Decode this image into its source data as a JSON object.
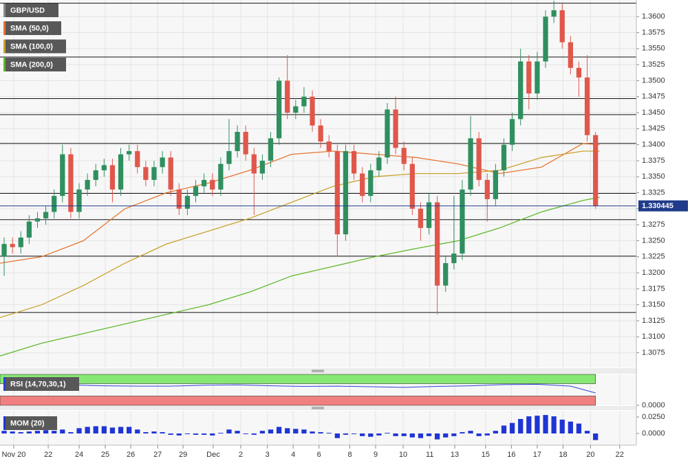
{
  "chart_data": [
    {
      "type": "candlestick",
      "name": "GBP/USD",
      "legend_color": "#8a8a8a",
      "up_color": "#2f8f5f",
      "down_color": "#e0574b",
      "open": [
        1.3225,
        1.3245,
        1.324,
        1.3255,
        1.328,
        1.3285,
        1.3295,
        1.332,
        1.3385,
        1.3295,
        1.333,
        1.3345,
        1.336,
        1.3368,
        1.333,
        1.3385,
        1.339,
        1.3365,
        1.3345,
        1.3365,
        1.338,
        1.333,
        1.33,
        1.332,
        1.3335,
        1.3345,
        1.333,
        1.337,
        1.339,
        1.342,
        1.3385,
        1.3355,
        1.3375,
        1.341,
        1.35,
        1.345,
        1.346,
        1.3475,
        1.343,
        1.3405,
        1.339,
        1.326,
        1.339,
        1.3355,
        1.332,
        1.336,
        1.338,
        1.3455,
        1.3395,
        1.337,
        1.33,
        1.327,
        1.331,
        1.318,
        1.3215,
        1.323,
        1.333,
        1.341,
        1.3345,
        1.3315,
        1.336,
        1.34,
        1.344,
        1.353,
        1.348,
        1.353,
        1.36,
        1.361,
        1.356,
        1.352,
        1.3505,
        1.3415
      ],
      "high": [
        1.3255,
        1.3255,
        1.3265,
        1.329,
        1.3295,
        1.3305,
        1.333,
        1.34,
        1.3395,
        1.334,
        1.3355,
        1.337,
        1.3378,
        1.3378,
        1.3395,
        1.34,
        1.34,
        1.3375,
        1.3375,
        1.339,
        1.339,
        1.334,
        1.333,
        1.3345,
        1.3355,
        1.3355,
        1.338,
        1.344,
        1.343,
        1.343,
        1.3395,
        1.3385,
        1.342,
        1.3505,
        1.354,
        1.347,
        1.349,
        1.3485,
        1.344,
        1.3415,
        1.34,
        1.34,
        1.34,
        1.3365,
        1.337,
        1.339,
        1.3465,
        1.3475,
        1.3405,
        1.338,
        1.331,
        1.3325,
        1.332,
        1.3225,
        1.332,
        1.3345,
        1.3445,
        1.342,
        1.3355,
        1.337,
        1.341,
        1.345,
        1.355,
        1.354,
        1.3545,
        1.361,
        1.3625,
        1.362,
        1.357,
        1.353,
        1.354,
        1.342
      ],
      "low": [
        1.3195,
        1.323,
        1.323,
        1.3245,
        1.327,
        1.3275,
        1.3285,
        1.331,
        1.3285,
        1.3285,
        1.332,
        1.3335,
        1.335,
        1.331,
        1.332,
        1.3375,
        1.3355,
        1.3335,
        1.3335,
        1.3355,
        1.332,
        1.329,
        1.329,
        1.331,
        1.3325,
        1.332,
        1.332,
        1.336,
        1.338,
        1.3375,
        1.329,
        1.3345,
        1.3365,
        1.34,
        1.344,
        1.344,
        1.345,
        1.342,
        1.3395,
        1.338,
        1.3225,
        1.325,
        1.3345,
        1.331,
        1.331,
        1.335,
        1.337,
        1.3385,
        1.336,
        1.329,
        1.325,
        1.326,
        1.3135,
        1.317,
        1.3205,
        1.322,
        1.332,
        1.3335,
        1.328,
        1.3305,
        1.335,
        1.339,
        1.343,
        1.3455,
        1.347,
        1.352,
        1.359,
        1.355,
        1.351,
        1.3475,
        1.3405,
        1.33
      ],
      "close": [
        1.3245,
        1.324,
        1.3255,
        1.328,
        1.3285,
        1.3295,
        1.332,
        1.3385,
        1.3295,
        1.333,
        1.3345,
        1.336,
        1.3368,
        1.333,
        1.3385,
        1.339,
        1.3365,
        1.3345,
        1.3365,
        1.338,
        1.333,
        1.33,
        1.332,
        1.3335,
        1.3345,
        1.333,
        1.337,
        1.339,
        1.342,
        1.3385,
        1.3355,
        1.3375,
        1.341,
        1.35,
        1.345,
        1.346,
        1.3475,
        1.343,
        1.3405,
        1.339,
        1.326,
        1.339,
        1.3355,
        1.332,
        1.336,
        1.338,
        1.3455,
        1.3395,
        1.337,
        1.33,
        1.327,
        1.331,
        1.318,
        1.3215,
        1.323,
        1.333,
        1.341,
        1.3345,
        1.3315,
        1.336,
        1.34,
        1.344,
        1.353,
        1.348,
        1.353,
        1.36,
        1.361,
        1.356,
        1.352,
        1.3505,
        1.3415,
        1.3304
      ],
      "overlays": [
        {
          "name": "SMA (50,0)",
          "color": "#e8742e",
          "x": [
            0,
            5,
            10,
            15,
            20,
            25,
            30,
            35,
            40,
            45,
            50,
            55,
            60,
            65,
            70,
            72
          ],
          "values": [
            1.3215,
            1.3225,
            1.325,
            1.33,
            1.3325,
            1.334,
            1.336,
            1.3385,
            1.339,
            1.3385,
            1.338,
            1.337,
            1.3355,
            1.3365,
            1.3402,
            1.34
          ]
        },
        {
          "name": "SMA (100,0)",
          "color": "#c9a22c",
          "x": [
            0,
            5,
            10,
            15,
            20,
            25,
            30,
            35,
            40,
            45,
            50,
            55,
            60,
            65,
            70,
            72
          ],
          "values": [
            1.313,
            1.315,
            1.318,
            1.3215,
            1.3245,
            1.3265,
            1.3285,
            1.331,
            1.3335,
            1.335,
            1.3355,
            1.3355,
            1.336,
            1.338,
            1.339,
            1.339
          ]
        },
        {
          "name": "SMA (200,0)",
          "color": "#5db82a",
          "x": [
            0,
            5,
            10,
            15,
            20,
            25,
            30,
            35,
            40,
            45,
            50,
            55,
            60,
            65,
            70,
            72
          ],
          "values": [
            1.307,
            1.309,
            1.3105,
            1.312,
            1.3135,
            1.315,
            1.317,
            1.3195,
            1.321,
            1.3225,
            1.3238,
            1.325,
            1.327,
            1.3295,
            1.3313,
            1.3318
          ]
        }
      ],
      "levels": [
        1.3621,
        1.3537,
        1.3472,
        1.3447,
        1.3402,
        1.3324,
        1.3283,
        1.3226,
        1.3138
      ],
      "last_price": 1.330445,
      "last_price_color": "#1f3b8a",
      "ylim": [
        1.3052,
        1.3626
      ],
      "yticks": [
        {
          "value": 1.3075,
          "label": "1.3075"
        },
        {
          "value": 1.31,
          "label": "1.3100"
        },
        {
          "value": 1.3125,
          "label": "1.3125"
        },
        {
          "value": 1.315,
          "label": "1.3150"
        },
        {
          "value": 1.3175,
          "label": "1.3175"
        },
        {
          "value": 1.32,
          "label": "1.3200"
        },
        {
          "value": 1.3225,
          "label": "1.3225"
        },
        {
          "value": 1.325,
          "label": "1.3250"
        },
        {
          "value": 1.3275,
          "label": "1.3275"
        },
        {
          "value": 1.33,
          "label": "1.3300"
        },
        {
          "value": 1.3325,
          "label": "1.3325"
        },
        {
          "value": 1.335,
          "label": "1.3350"
        },
        {
          "value": 1.3375,
          "label": "1.3375"
        },
        {
          "value": 1.34,
          "label": "1.3400"
        },
        {
          "value": 1.3425,
          "label": "1.3425"
        },
        {
          "value": 1.345,
          "label": "1.3450"
        },
        {
          "value": 1.3475,
          "label": "1.3475"
        },
        {
          "value": 1.35,
          "label": "1.3500"
        },
        {
          "value": 1.3525,
          "label": "1.3525"
        },
        {
          "value": 1.355,
          "label": "1.3550"
        },
        {
          "value": 1.3575,
          "label": "1.3575"
        },
        {
          "value": 1.36,
          "label": "1.3600"
        }
      ],
      "xlim": [
        0,
        76.4
      ],
      "xticks": [
        {
          "value": 1.65,
          "label": "Nov 20"
        },
        {
          "value": 5.79,
          "label": "22"
        },
        {
          "value": 9.5,
          "label": "24"
        },
        {
          "value": 12.64,
          "label": "25"
        },
        {
          "value": 15.7,
          "label": "26"
        },
        {
          "value": 18.93,
          "label": "27"
        },
        {
          "value": 21.98,
          "label": "29"
        },
        {
          "value": 25.6,
          "label": "Dec"
        },
        {
          "value": 28.9,
          "label": "2"
        },
        {
          "value": 32.1,
          "label": "3"
        },
        {
          "value": 35.2,
          "label": "4"
        },
        {
          "value": 38.3,
          "label": "6"
        },
        {
          "value": 42.0,
          "label": "8"
        },
        {
          "value": 45.1,
          "label": "9"
        },
        {
          "value": 48.4,
          "label": "10"
        },
        {
          "value": 51.6,
          "label": "11"
        },
        {
          "value": 54.6,
          "label": "13"
        },
        {
          "value": 58.3,
          "label": "15"
        },
        {
          "value": 61.4,
          "label": "16"
        },
        {
          "value": 64.5,
          "label": "17"
        },
        {
          "value": 67.6,
          "label": "18"
        },
        {
          "value": 70.9,
          "label": "20"
        },
        {
          "value": 74.4,
          "label": "22"
        }
      ],
      "grid": true
    },
    {
      "type": "line",
      "name": "RSI (14,70,30,1)",
      "color": "#2b3fd6",
      "x": [
        0.5,
        4.5,
        8.5,
        12.5,
        16.5,
        20.5,
        24.5,
        28.5,
        32.5,
        36.5,
        40.5,
        44.5,
        48.5,
        52.5,
        56.5,
        60.5,
        64.5,
        68.5,
        71.5
      ],
      "values": [
        60,
        64,
        66,
        63,
        62,
        62,
        65,
        66,
        63,
        61,
        62,
        60,
        58,
        61,
        63,
        67,
        68,
        62,
        40
      ],
      "bands": [
        {
          "range": [
            70,
            100
          ],
          "color": "#86e873"
        },
        {
          "range": [
            0,
            30
          ],
          "color": "#f08080"
        }
      ],
      "ylim": [
        0,
        100
      ],
      "yticks": [
        {
          "value": 0,
          "label": "0.0000"
        }
      ]
    },
    {
      "type": "bar",
      "name": "MOM (20)",
      "color": "#1f35d6",
      "values": [
        0.004,
        0.003,
        0.002,
        0.003,
        0.004,
        0.005,
        0.004,
        0.006,
        0.002,
        0.008,
        0.01,
        0.011,
        0.011,
        0.009,
        0.01,
        0.01,
        0.006,
        0.002,
        0.003,
        0.002,
        -0.002,
        -0.003,
        -0.001,
        -0.002,
        -0.002,
        -0.003,
        0.001,
        0.006,
        0.004,
        -0.001,
        -0.002,
        0.004,
        0.006,
        0.01,
        0.008,
        0.007,
        0.006,
        0.003,
        0.002,
        0.001,
        -0.007,
        -0.002,
        -0.001,
        -0.004,
        -0.005,
        -0.003,
        0.001,
        -0.004,
        -0.004,
        -0.006,
        -0.007,
        -0.004,
        -0.009,
        -0.006,
        -0.004,
        0.002,
        0.004,
        -0.004,
        -0.003,
        0.004,
        0.012,
        0.016,
        0.022,
        0.026,
        0.027,
        0.028,
        0.026,
        0.021,
        0.018,
        0.015,
        0.004,
        -0.01
      ],
      "ylim": [
        -0.0177,
        0.0344
      ],
      "yticks": [
        {
          "value": 0.025,
          "label": "0.0250"
        },
        {
          "value": 0,
          "label": "0.0000"
        }
      ]
    }
  ]
}
